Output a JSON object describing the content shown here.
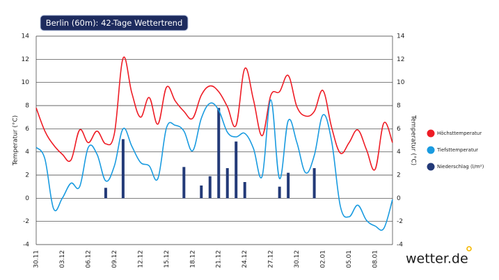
{
  "chart_data": {
    "type": "line",
    "title": "Berlin (60m): 42-Tage Wettertrend",
    "brand": "wetter.de",
    "ylabel": "Temperatur (°C)",
    "y2label": "Temperatur (°C)",
    "categories": [
      "30.11",
      null,
      null,
      "03.12",
      null,
      null,
      "06.12",
      null,
      null,
      "09.12",
      null,
      null,
      "12.12",
      null,
      null,
      "15.12",
      null,
      null,
      "18.12",
      null,
      null,
      "21.12",
      null,
      null,
      "24.12",
      null,
      null,
      "27.12",
      null,
      null,
      "30.12",
      null,
      null,
      "02.01",
      null,
      null,
      "05.01",
      null,
      null,
      "08.01",
      null,
      null
    ],
    "series": [
      {
        "name": "Höchsttemperatur",
        "type": "line",
        "color": "#ee1c25",
        "values": [
          7.8,
          5.8,
          4.6,
          3.8,
          3.3,
          5.9,
          4.8,
          5.8,
          4.7,
          5.6,
          12.1,
          9.1,
          7.0,
          8.7,
          6.4,
          9.6,
          8.4,
          7.5,
          6.9,
          8.9,
          9.7,
          9.2,
          7.9,
          6.3,
          11.2,
          8.5,
          5.4,
          8.9,
          9.2,
          10.6,
          7.9,
          7.1,
          7.5,
          9.3,
          6.1,
          3.9,
          4.8,
          5.9,
          4.2,
          2.5,
          6.5,
          4.8
        ]
      },
      {
        "name": "Tiefsttemperatur",
        "type": "line",
        "color": "#1a9be0",
        "values": [
          4.4,
          3.4,
          -0.9,
          0.0,
          1.3,
          1.0,
          4.4,
          3.8,
          1.5,
          2.8,
          6.0,
          4.5,
          3.1,
          2.8,
          1.7,
          6.1,
          6.3,
          5.8,
          4.1,
          6.9,
          8.2,
          7.6,
          5.7,
          5.3,
          5.6,
          4.3,
          1.9,
          8.5,
          1.7,
          6.7,
          4.8,
          2.2,
          3.7,
          7.2,
          4.9,
          -0.7,
          -1.6,
          -0.6,
          -1.9,
          -2.4,
          -2.6,
          -0.1
        ]
      },
      {
        "name": "Niederschlag (l/m²)",
        "type": "bar",
        "axis": "y2",
        "color": "#233a78",
        "values": [
          null,
          null,
          null,
          null,
          null,
          null,
          null,
          null,
          0.9,
          null,
          5.1,
          null,
          null,
          null,
          null,
          null,
          null,
          2.7,
          null,
          1.1,
          1.9,
          7.8,
          2.6,
          4.9,
          1.4,
          null,
          null,
          null,
          1.0,
          2.2,
          null,
          null,
          2.6,
          null,
          null,
          null,
          null,
          null,
          null,
          null,
          null,
          null
        ]
      }
    ],
    "ylim": [
      -4,
      14
    ],
    "yticks": [
      -4,
      -2,
      0,
      2,
      4,
      6,
      8,
      10,
      12,
      14
    ],
    "y2lim": [
      -4,
      14
    ],
    "y2ticks": [
      -4,
      -2,
      0,
      2,
      4,
      6,
      8,
      10,
      12,
      14
    ],
    "grid": true,
    "legend": "right"
  }
}
